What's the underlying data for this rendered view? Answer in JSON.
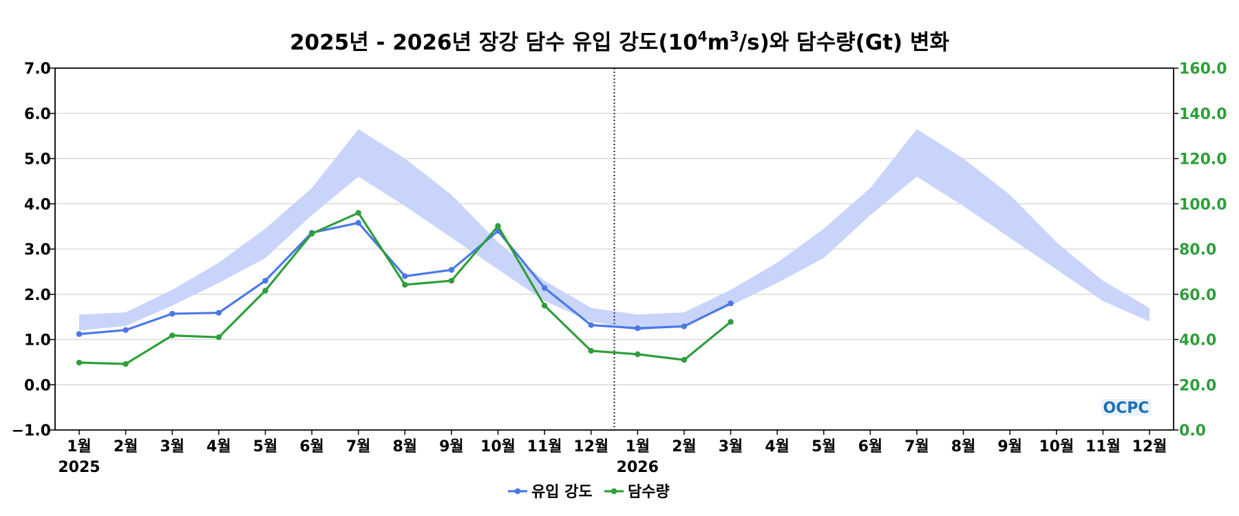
{
  "chart_data": {
    "type": "line",
    "title": {
      "part1": "2025년 - 2026년 장강 담수 유입 강도(10",
      "sup1": "4",
      "part2": "m",
      "sup2": "3",
      "part3": "/s)와 담수량(Gt) 변화"
    },
    "x_labels": [
      "1월",
      "2월",
      "3월",
      "4월",
      "5월",
      "6월",
      "7월",
      "8월",
      "9월",
      "10월",
      "11월",
      "12월",
      "1월",
      "2월",
      "3월",
      "4월",
      "5월",
      "6월",
      "7월",
      "8월",
      "9월",
      "10월",
      "11월",
      "12월"
    ],
    "years": [
      {
        "label": "2025",
        "index": 0
      },
      {
        "label": "2026",
        "index": 12
      }
    ],
    "divider_between_index": [
      11,
      12
    ],
    "y_left": {
      "ylim": [
        -1.0,
        7.0
      ],
      "ticks": [
        "−1.0",
        "0.0",
        "1.0",
        "2.0",
        "3.0",
        "4.0",
        "5.0",
        "6.0",
        "7.0"
      ],
      "tick_values": [
        -1,
        0,
        1,
        2,
        3,
        4,
        5,
        6,
        7
      ],
      "color": "#000000"
    },
    "y_right": {
      "ylim": [
        0.0,
        160.0
      ],
      "ticks": [
        "0.0",
        "20.0",
        "40.0",
        "60.0",
        "80.0",
        "100.0",
        "120.0",
        "140.0",
        "160.0"
      ],
      "tick_values": [
        0,
        20,
        40,
        60,
        80,
        100,
        120,
        140,
        160
      ],
      "color": "#2e9e3a"
    },
    "grid": true,
    "climatology_band": {
      "axis": "left",
      "color": "#c9d4fb",
      "lower": [
        1.2,
        1.3,
        1.75,
        2.25,
        2.8,
        3.75,
        4.6,
        3.95,
        3.25,
        2.55,
        1.85,
        1.4,
        1.2,
        1.3,
        1.75,
        2.25,
        2.8,
        3.75,
        4.6,
        3.95,
        3.25,
        2.55,
        1.85,
        1.4
      ],
      "upper": [
        1.55,
        1.6,
        2.1,
        2.7,
        3.45,
        4.35,
        5.65,
        5.0,
        4.2,
        3.15,
        2.3,
        1.7,
        1.55,
        1.6,
        2.1,
        2.7,
        3.45,
        4.35,
        5.65,
        5.0,
        4.2,
        3.15,
        2.3,
        1.7
      ]
    },
    "series": [
      {
        "name": "유입 강도",
        "axis": "left",
        "color": "#4a78e8",
        "values": [
          1.12,
          1.21,
          1.57,
          1.59,
          2.3,
          3.36,
          3.58,
          2.4,
          2.54,
          3.4,
          2.14,
          1.32,
          1.25,
          1.29,
          1.8
        ]
      },
      {
        "name": "담수량",
        "axis": "right",
        "color": "#2e9e3a",
        "values": [
          29.8,
          29.2,
          41.8,
          41.0,
          61.6,
          86.8,
          96.0,
          64.2,
          66.0,
          90.2,
          55.0,
          35.0,
          33.5,
          31.0,
          47.8
        ]
      }
    ],
    "legend_position": "bottom-center"
  },
  "logo": {
    "text": "OCPC"
  }
}
